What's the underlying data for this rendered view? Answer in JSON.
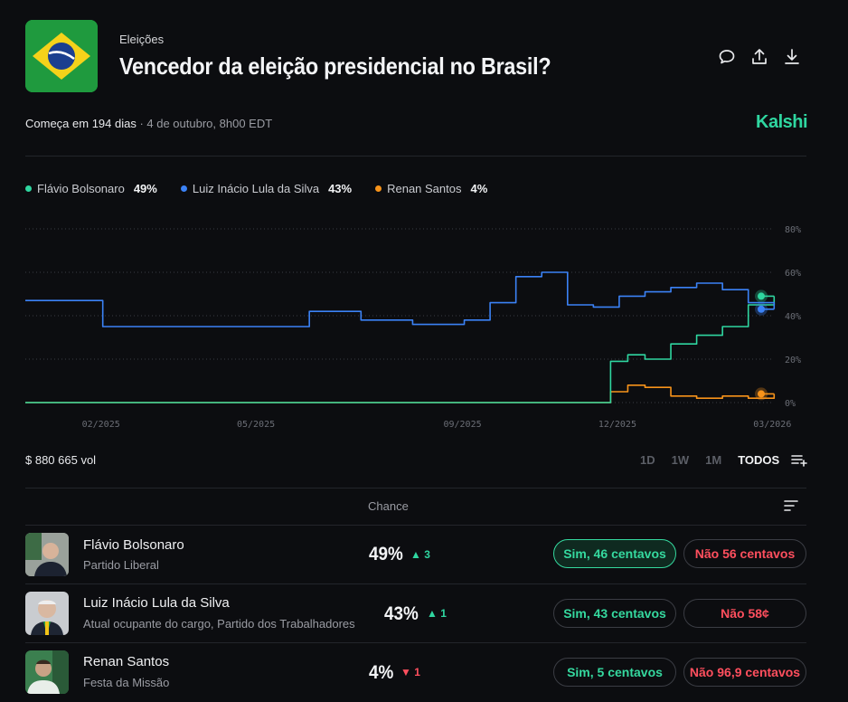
{
  "header": {
    "category": "Eleições",
    "title": "Vencedor da eleição presidencial no Brasil?",
    "starts_label": "Começa em 194 dias",
    "date_label": " · 4 de outubro, 8h00 EDT",
    "brand": "Kalshi"
  },
  "legend": [
    {
      "name": "Flávio Bolsonaro",
      "value": "49%",
      "color": "#2fd6a0"
    },
    {
      "name": "Luiz Inácio Lula da Silva",
      "value": "43%",
      "color": "#3b82f6"
    },
    {
      "name": "Renan Santos",
      "value": "4%",
      "color": "#f7931a"
    }
  ],
  "chart_data": {
    "type": "line",
    "x_ticks": [
      "02/2025",
      "05/2025",
      "09/2025",
      "12/2025",
      "03/2026"
    ],
    "y_ticks": [
      "80%",
      "60%",
      "40%",
      "20%",
      "0%"
    ],
    "ylim": [
      0,
      80
    ],
    "grid": true,
    "series": [
      {
        "name": "Luiz Inácio Lula da Silva",
        "color": "#3b82f6",
        "x": [
          "01/2025",
          "02/2025",
          "03/2025",
          "04/2025",
          "05/2025",
          "06/2025",
          "07/2025",
          "08/2025",
          "09/2025",
          "10/2025",
          "10/2025",
          "11/2025",
          "11/2025",
          "12/2025",
          "12/2025",
          "01/2026",
          "01/2026",
          "02/2026",
          "02/2026",
          "03/2026",
          "03/2026"
        ],
        "values": [
          47,
          35,
          35,
          35,
          35,
          42,
          38,
          36,
          38,
          46,
          58,
          60,
          45,
          44,
          49,
          51,
          53,
          55,
          52,
          46,
          43
        ]
      },
      {
        "name": "Flávio Bolsonaro",
        "color": "#2fd6a0",
        "x": [
          "11/2025",
          "12/2025",
          "12/2025",
          "12/2025",
          "01/2026",
          "01/2026",
          "02/2026",
          "02/2026",
          "03/2026",
          "03/2026"
        ],
        "values": [
          0,
          0,
          19,
          22,
          20,
          27,
          31,
          35,
          45,
          49
        ]
      },
      {
        "name": "Renan Santos",
        "color": "#f7931a",
        "x": [
          "11/2025",
          "12/2025",
          "12/2025",
          "12/2025",
          "01/2026",
          "01/2026",
          "02/2026",
          "02/2026",
          "03/2026",
          "03/2026"
        ],
        "values": [
          0,
          0,
          5,
          8,
          7,
          3,
          2,
          3,
          2,
          4
        ]
      }
    ]
  },
  "volume": "$ 880 665 vol",
  "ranges": [
    "1D",
    "1W",
    "1M",
    "TODOS"
  ],
  "active_range": "TODOS",
  "table": {
    "header": "Chance",
    "rows": [
      {
        "name": "Flávio Bolsonaro",
        "sub": "Partido Liberal",
        "pct": "49%",
        "delta": "▲ 3",
        "dir": "up",
        "yes": "Sim,  46 centavos",
        "no": "Não  56 centavos"
      },
      {
        "name": "Luiz Inácio Lula da Silva",
        "sub": "Atual ocupante do cargo, Partido dos Trabalhadores",
        "pct": "43%",
        "delta": "▲ 1",
        "dir": "up",
        "yes": "Sim,  43 centavos",
        "no": "Não  58¢"
      },
      {
        "name": "Renan Santos",
        "sub": "Festa da Missão",
        "pct": "4%",
        "delta": "▼ 1",
        "dir": "down",
        "yes": "Sim,  5 centavos",
        "no": "Não  96,9 centavos"
      }
    ]
  }
}
